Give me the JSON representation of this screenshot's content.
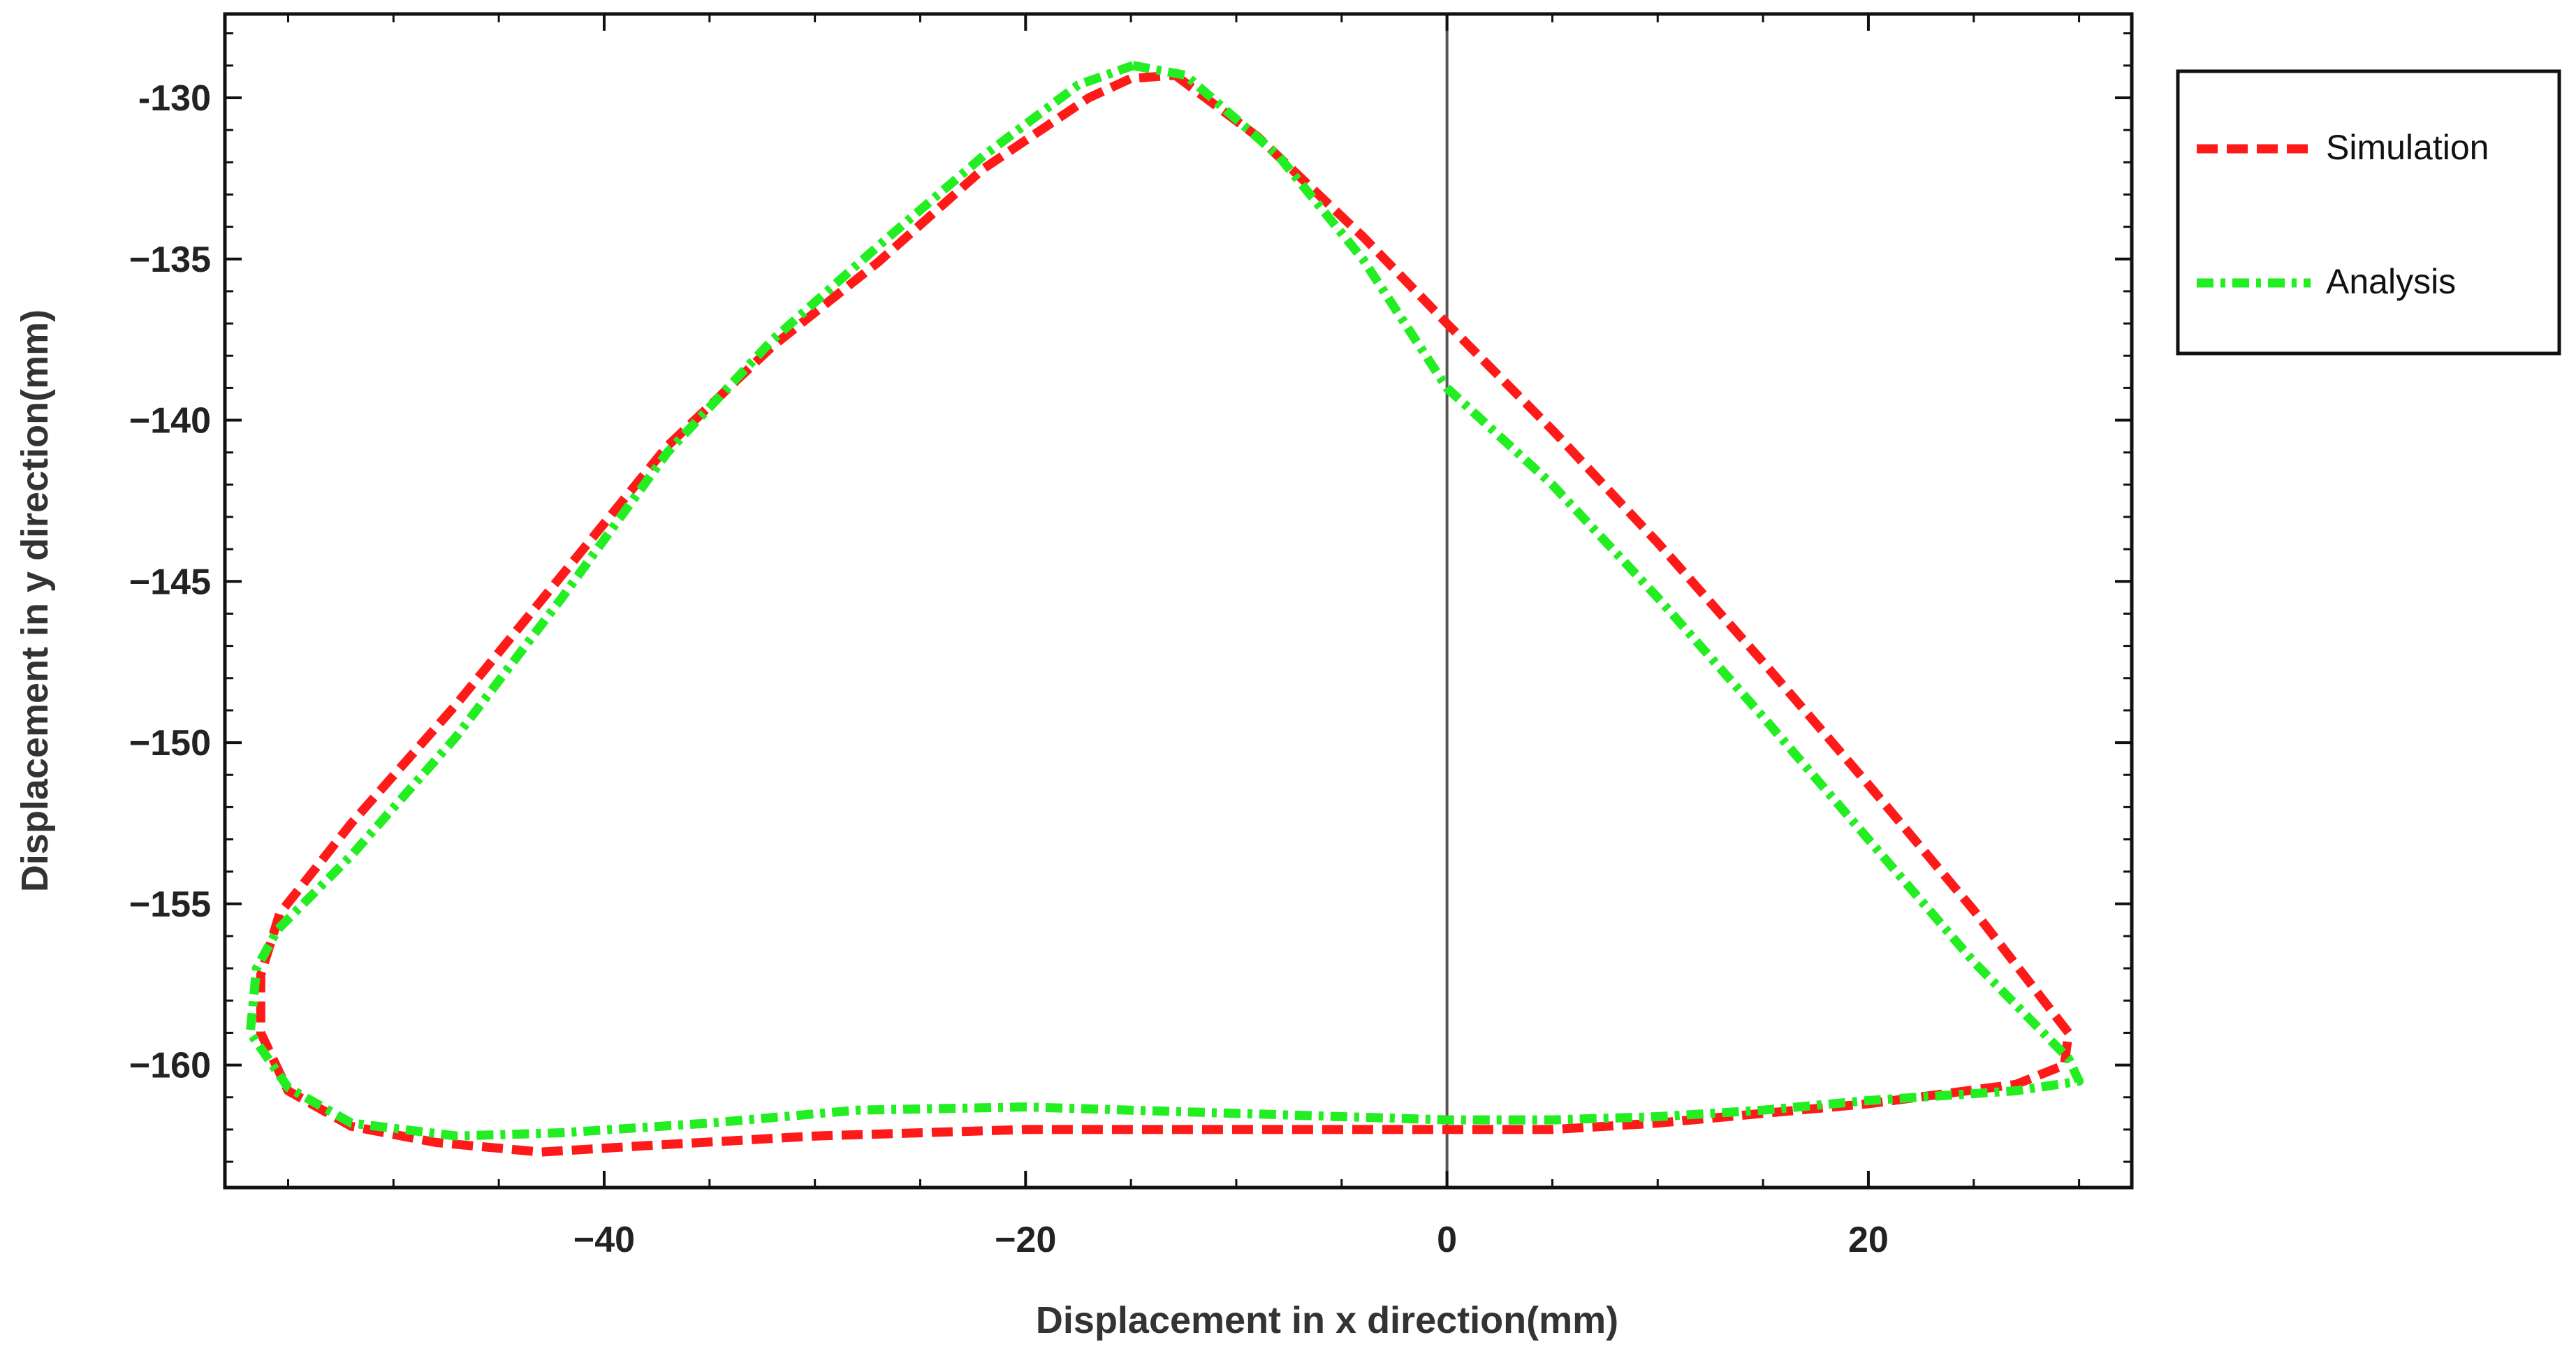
{
  "chart_data": {
    "type": "line",
    "title": "",
    "xlabel": "Displacement in x direction(mm)",
    "ylabel": "Displacement in y direction(mm)",
    "xlim": [
      -58,
      32.5
    ],
    "ylim": [
      -163.8,
      -127.4
    ],
    "x_ticks": [
      -40,
      -20,
      0,
      20
    ],
    "x_tick_labels": [
      "−40",
      "−20",
      "0",
      "20"
    ],
    "y_ticks": [
      -130,
      -135,
      -140,
      -145,
      -150,
      -155,
      -160
    ],
    "y_tick_labels": [
      "-130",
      "−135",
      "−140",
      "−145",
      "−150",
      "−155",
      "−160"
    ],
    "reference_line_x": 0,
    "grid": false,
    "legend_position": "right-top-outside",
    "series": [
      {
        "name": "Simulation",
        "color": "#ff1a1a",
        "style": "dashed",
        "points": [
          [
            -12.9,
            -129.3
          ],
          [
            -9,
            -131.2
          ],
          [
            -4,
            -134.3
          ],
          [
            0,
            -137.0
          ],
          [
            5,
            -140.3
          ],
          [
            10,
            -143.8
          ],
          [
            15,
            -147.5
          ],
          [
            20,
            -151.3
          ],
          [
            25,
            -155.2
          ],
          [
            29.5,
            -159.0
          ],
          [
            29.3,
            -160.0
          ],
          [
            27,
            -160.6
          ],
          [
            20,
            -161.2
          ],
          [
            15,
            -161.5
          ],
          [
            10,
            -161.8
          ],
          [
            5,
            -162.0
          ],
          [
            0,
            -162.0
          ],
          [
            -10,
            -162.0
          ],
          [
            -20,
            -162.0
          ],
          [
            -30,
            -162.2
          ],
          [
            -38,
            -162.5
          ],
          [
            -43,
            -162.7
          ],
          [
            -48,
            -162.4
          ],
          [
            -52,
            -161.9
          ],
          [
            -55,
            -160.8
          ],
          [
            -56.3,
            -159.0
          ],
          [
            -56.3,
            -157.2
          ],
          [
            -55.4,
            -155.3
          ],
          [
            -52,
            -152.5
          ],
          [
            -47,
            -148.8
          ],
          [
            -42,
            -144.8
          ],
          [
            -37,
            -140.8
          ],
          [
            -32,
            -137.7
          ],
          [
            -27,
            -135.1
          ],
          [
            -22,
            -132.2
          ],
          [
            -17,
            -130.0
          ],
          [
            -15,
            -129.4
          ],
          [
            -12.9,
            -129.3
          ]
        ]
      },
      {
        "name": "Analysis",
        "color": "#22ee22",
        "style": "dash-dot",
        "points": [
          [
            -14.9,
            -129.0
          ],
          [
            -12.4,
            -129.3
          ],
          [
            -8,
            -131.8
          ],
          [
            -4,
            -135.0
          ],
          [
            0,
            -139.0
          ],
          [
            5,
            -142.0
          ],
          [
            10,
            -145.5
          ],
          [
            15,
            -149.2
          ],
          [
            20,
            -153.0
          ],
          [
            25,
            -156.8
          ],
          [
            29.5,
            -159.8
          ],
          [
            30,
            -160.5
          ],
          [
            27,
            -160.8
          ],
          [
            20,
            -161.1
          ],
          [
            15,
            -161.4
          ],
          [
            10,
            -161.6
          ],
          [
            5,
            -161.7
          ],
          [
            0,
            -161.7
          ],
          [
            -10,
            -161.5
          ],
          [
            -20,
            -161.3
          ],
          [
            -28,
            -161.4
          ],
          [
            -35,
            -161.8
          ],
          [
            -42,
            -162.1
          ],
          [
            -47,
            -162.2
          ],
          [
            -52,
            -161.8
          ],
          [
            -55,
            -160.7
          ],
          [
            -56.8,
            -159.0
          ],
          [
            -56.5,
            -157.0
          ],
          [
            -55.5,
            -155.8
          ],
          [
            -52,
            -153.5
          ],
          [
            -47,
            -149.8
          ],
          [
            -42,
            -145.5
          ],
          [
            -37,
            -141.0
          ],
          [
            -32,
            -137.5
          ],
          [
            -27,
            -134.6
          ],
          [
            -22,
            -131.8
          ],
          [
            -17.5,
            -129.6
          ],
          [
            -14.9,
            -129.0
          ]
        ]
      }
    ]
  }
}
